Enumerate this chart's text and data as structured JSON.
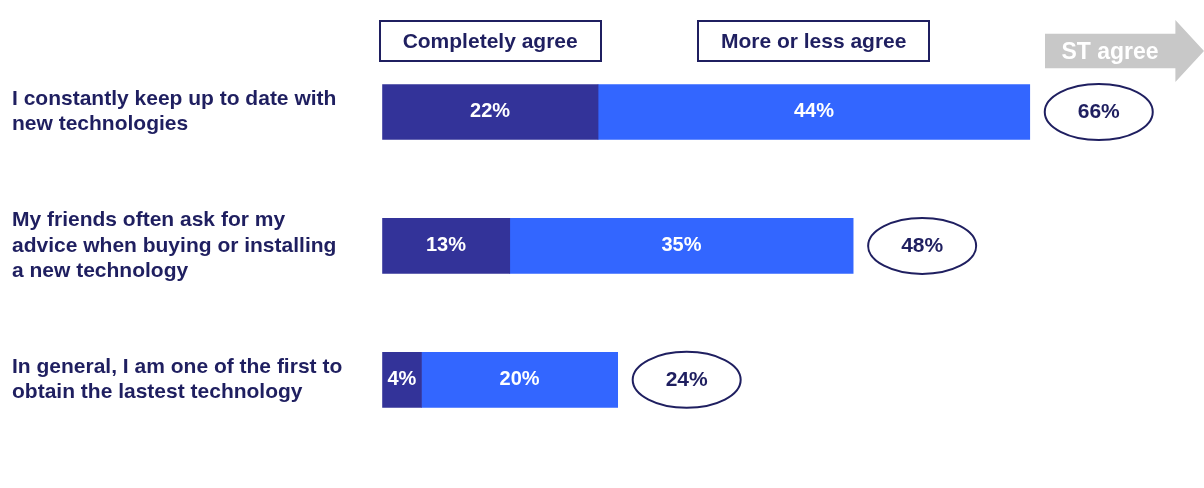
{
  "chart_data": {
    "type": "bar",
    "orientation": "horizontal",
    "stacked": true,
    "categories": [
      "I constantly keep up to date with new technologies",
      "My friends often ask for my advice when buying or installing a new technology",
      "In general, I am one of the first to obtain the lastest technology"
    ],
    "series": [
      {
        "name": "Completely agree",
        "color": "#333399",
        "values": [
          22,
          13,
          4
        ],
        "value_labels": [
          "22%",
          "13%",
          "4%"
        ]
      },
      {
        "name": "More or less agree",
        "color": "#3366ff",
        "values": [
          44,
          35,
          20
        ],
        "value_labels": [
          "44%",
          "35%",
          "20%"
        ]
      }
    ],
    "totals": [
      "66%",
      "48%",
      "24%"
    ],
    "annotations": [
      "ST agree"
    ],
    "tick_labels": "y",
    "legend": "top"
  }
}
